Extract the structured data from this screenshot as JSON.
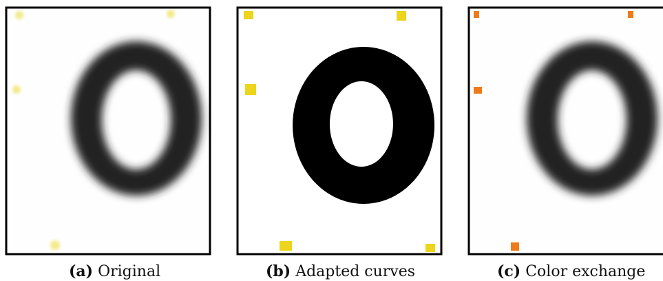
{
  "figure": {
    "panels": [
      {
        "label": "(a)",
        "caption": "Original"
      },
      {
        "label": "(b)",
        "caption": "Adapted curves"
      },
      {
        "label": "(c)",
        "caption": "Color exchange"
      }
    ]
  }
}
